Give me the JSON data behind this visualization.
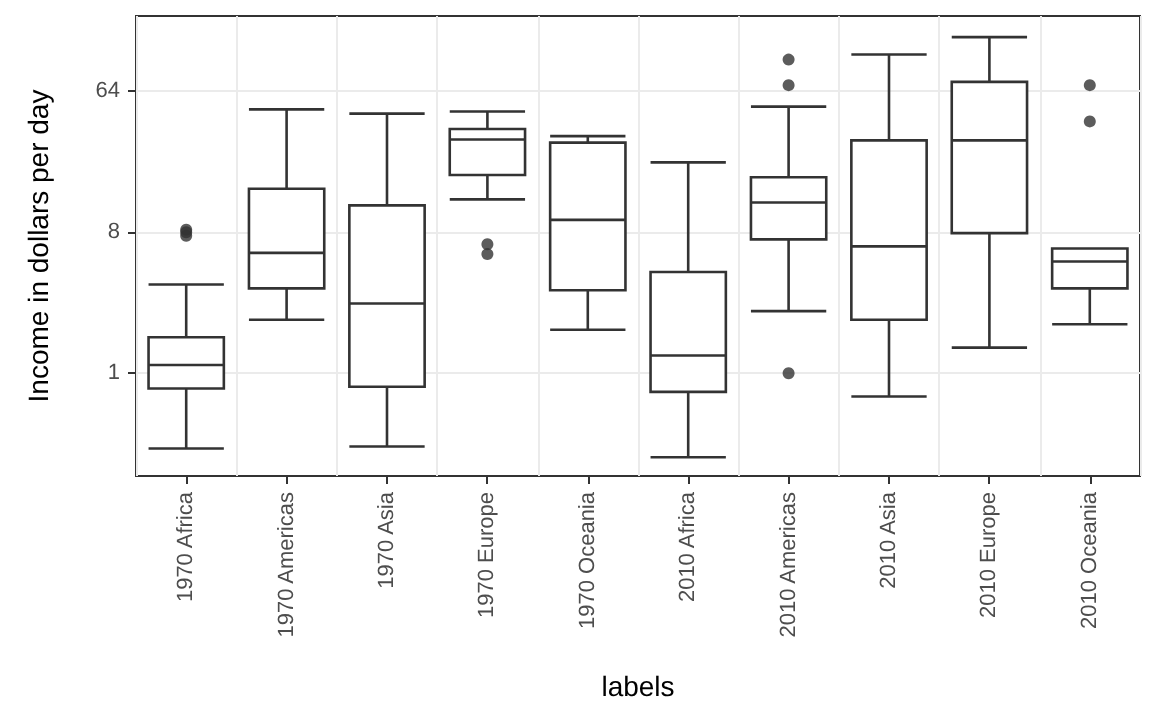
{
  "chart_data": {
    "type": "box",
    "xlabel": "labels",
    "ylabel": "Income in dollars per day",
    "categories": [
      "1970 Africa",
      "1970 Americas",
      "1970 Asia",
      "1970 Europe",
      "1970 Oceania",
      "2010 Africa",
      "2010 Americas",
      "2010 Asia",
      "2010 Europe",
      "2010 Oceania"
    ],
    "boxes": [
      {
        "low": 0.33,
        "q1": 0.8,
        "median": 1.13,
        "q3": 1.7,
        "high": 3.7,
        "outliers": [
          8.3,
          8.0,
          7.6
        ]
      },
      {
        "low": 2.2,
        "q1": 3.5,
        "median": 5.9,
        "q3": 15.2,
        "high": 49
      },
      {
        "low": 0.34,
        "q1": 0.82,
        "median": 2.8,
        "q3": 11.9,
        "high": 46
      },
      {
        "low": 13,
        "q1": 18.6,
        "median": 31.4,
        "q3": 36.7,
        "high": 47.5,
        "outliers": [
          6.7,
          5.8
        ]
      },
      {
        "low": 1.9,
        "q1": 3.4,
        "median": 9.6,
        "q3": 30,
        "high": 33
      },
      {
        "low": 0.29,
        "q1": 0.76,
        "median": 1.3,
        "q3": 4.45,
        "high": 22.4
      },
      {
        "low": 2.5,
        "q1": 7.2,
        "median": 12.4,
        "q3": 18,
        "high": 51,
        "outliers": [
          102,
          70,
          1.0
        ]
      },
      {
        "low": 0.71,
        "q1": 2.2,
        "median": 6.5,
        "q3": 31,
        "high": 110
      },
      {
        "low": 1.46,
        "q1": 7.9,
        "median": 31,
        "q3": 73.5,
        "high": 142
      },
      {
        "low": 2.06,
        "q1": 3.5,
        "median": 5.2,
        "q3": 6.3,
        "high": 6.3,
        "outliers": [
          70,
          41
        ]
      }
    ],
    "color": "#333333",
    "log": "y",
    "ylim": [
      0.22,
      194
    ],
    "yticks": [
      1,
      8,
      64
    ],
    "grid": true
  }
}
